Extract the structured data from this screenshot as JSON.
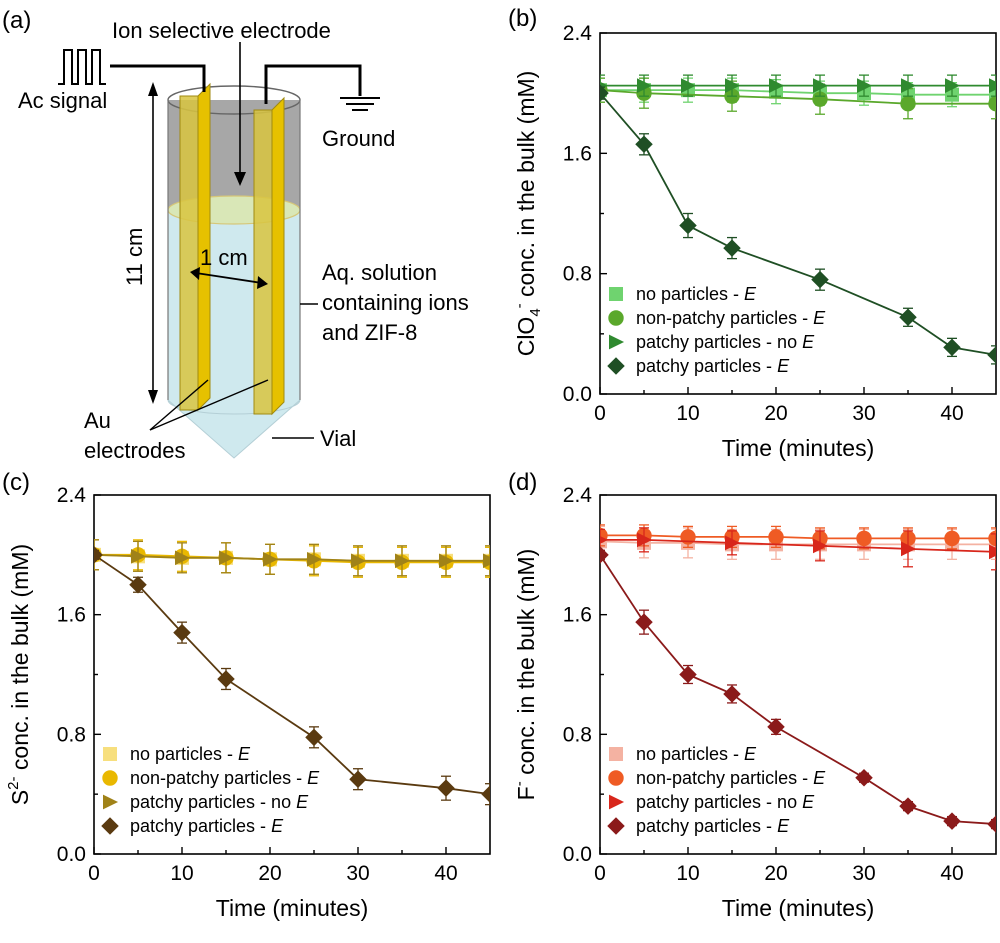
{
  "diagram": {
    "panel_label": "(a)",
    "labels": {
      "ion_electrode": "Ion selective electrode",
      "ac_signal": "Ac signal",
      "ground": "Ground",
      "height": "11 cm",
      "gap": "1 cm",
      "solution_line1": "Aq. solution",
      "solution_line2": "containing ions",
      "solution_line3": "and ZIF-8",
      "au_line1": "Au",
      "au_line2": "electrodes",
      "vial": "Vial"
    },
    "colors": {
      "liquid": "#cfe9ee",
      "gas": "#a7a7a7",
      "electrode": "#e6c100"
    }
  },
  "chart_data": [
    {
      "panel_label": "(b)",
      "type": "line",
      "xlabel": "Time (minutes)",
      "ylabel_main": "ClO",
      "ylabel_sub": "4",
      "ylabel_sup": "-",
      "ylabel_rest": " conc. in the bulk (mM)",
      "xlim": [
        0,
        45
      ],
      "ylim": [
        0,
        2.4
      ],
      "xticks": [
        0,
        10,
        20,
        30,
        40
      ],
      "yticks": [
        0.0,
        0.8,
        1.6,
        2.4
      ],
      "ytick_labels": [
        "0.0",
        "0.8",
        "1.6",
        "2.4"
      ],
      "legend_position": "bottom-left",
      "series": [
        {
          "name": "no particles - ",
          "name_italic": "E",
          "marker": "square",
          "color": "#6fd36f",
          "x": [
            0,
            5,
            10,
            15,
            20,
            25,
            30,
            35,
            40,
            45
          ],
          "y": [
            2.02,
            2.02,
            2.02,
            2.02,
            2.01,
            2.0,
            2.0,
            1.99,
            1.99,
            1.99
          ],
          "err": [
            0.08,
            0.08,
            0.08,
            0.08,
            0.08,
            0.08,
            0.08,
            0.08,
            0.08,
            0.08
          ]
        },
        {
          "name": "non-patchy particles - ",
          "name_italic": "E",
          "marker": "circle",
          "color": "#5aa82b",
          "x": [
            0,
            5,
            15,
            25,
            35,
            45
          ],
          "y": [
            2.02,
            2.0,
            1.98,
            1.96,
            1.93,
            1.93
          ],
          "err": [
            0.08,
            0.1,
            0.1,
            0.1,
            0.1,
            0.1
          ]
        },
        {
          "name": "patchy particles - no ",
          "name_italic": "E",
          "marker": "triangle",
          "color": "#2f8a2f",
          "x": [
            0,
            5,
            10,
            15,
            20,
            25,
            30,
            35,
            40,
            45
          ],
          "y": [
            2.05,
            2.05,
            2.05,
            2.05,
            2.05,
            2.05,
            2.05,
            2.05,
            2.05,
            2.05
          ],
          "err": [
            0.07,
            0.07,
            0.07,
            0.07,
            0.07,
            0.07,
            0.07,
            0.07,
            0.07,
            0.07
          ]
        },
        {
          "name": "patchy particles - ",
          "name_italic": "E",
          "marker": "diamond",
          "color": "#1f4f24",
          "x": [
            0,
            5,
            10,
            15,
            25,
            35,
            40,
            45
          ],
          "y": [
            2.0,
            1.66,
            1.12,
            0.97,
            0.76,
            0.51,
            0.31,
            0.26
          ],
          "err": [
            0.04,
            0.07,
            0.08,
            0.07,
            0.07,
            0.06,
            0.06,
            0.06
          ]
        }
      ]
    },
    {
      "panel_label": "(c)",
      "type": "line",
      "xlabel": "Time (minutes)",
      "ylabel_main": "S",
      "ylabel_sub": "",
      "ylabel_sup": "2-",
      "ylabel_rest": " conc. in the bulk (mM)",
      "xlim": [
        0,
        45
      ],
      "ylim": [
        0,
        2.4
      ],
      "xticks": [
        0,
        10,
        20,
        30,
        40
      ],
      "yticks": [
        0.0,
        0.8,
        1.6,
        2.4
      ],
      "ytick_labels": [
        "0.0",
        "0.8",
        "1.6",
        "2.4"
      ],
      "legend_position": "bottom-left",
      "series": [
        {
          "name": "no particles - ",
          "name_italic": "E",
          "marker": "square",
          "color": "#f7df7e",
          "x": [
            0,
            5,
            10,
            15,
            20,
            25,
            30,
            35,
            40,
            45
          ],
          "y": [
            2.0,
            1.99,
            1.98,
            1.98,
            1.97,
            1.97,
            1.96,
            1.96,
            1.96,
            1.96
          ],
          "err": [
            0.1,
            0.1,
            0.1,
            0.1,
            0.1,
            0.1,
            0.1,
            0.1,
            0.1,
            0.1
          ]
        },
        {
          "name": "non-patchy particles - ",
          "name_italic": "E",
          "marker": "circle",
          "color": "#e9b800",
          "x": [
            0,
            5,
            10,
            15,
            20,
            25,
            30,
            35,
            40,
            45
          ],
          "y": [
            2.0,
            2.0,
            1.99,
            1.98,
            1.97,
            1.96,
            1.95,
            1.95,
            1.95,
            1.95
          ],
          "err": [
            0.1,
            0.1,
            0.1,
            0.1,
            0.1,
            0.1,
            0.1,
            0.1,
            0.1,
            0.1
          ]
        },
        {
          "name": "patchy particles - no ",
          "name_italic": "E",
          "marker": "triangle",
          "color": "#a08218",
          "x": [
            0,
            5,
            10,
            15,
            20,
            25,
            30,
            35,
            40,
            45
          ],
          "y": [
            2.0,
            1.99,
            1.98,
            1.98,
            1.97,
            1.97,
            1.96,
            1.96,
            1.96,
            1.96
          ],
          "err": [
            0.1,
            0.1,
            0.1,
            0.1,
            0.1,
            0.1,
            0.1,
            0.1,
            0.1,
            0.1
          ]
        },
        {
          "name": "patchy particles - ",
          "name_italic": "E",
          "marker": "diamond",
          "color": "#5a3a10",
          "x": [
            0,
            5,
            10,
            15,
            25,
            30,
            40,
            45
          ],
          "y": [
            2.0,
            1.8,
            1.48,
            1.17,
            0.78,
            0.5,
            0.44,
            0.4
          ],
          "err": [
            0.03,
            0.05,
            0.07,
            0.07,
            0.07,
            0.07,
            0.08,
            0.07
          ]
        }
      ]
    },
    {
      "panel_label": "(d)",
      "type": "line",
      "xlabel": "Time (minutes)",
      "ylabel_main": "F",
      "ylabel_sub": "",
      "ylabel_sup": "-",
      "ylabel_rest": " conc. in the bulk (mM)",
      "xlim": [
        0,
        45
      ],
      "ylim": [
        0,
        2.4
      ],
      "xticks": [
        0,
        10,
        20,
        30,
        40
      ],
      "yticks": [
        0.0,
        0.8,
        1.6,
        2.4
      ],
      "ytick_labels": [
        "0.0",
        "0.8",
        "1.6",
        "2.4"
      ],
      "legend_position": "bottom-left",
      "series": [
        {
          "name": "no particles - ",
          "name_italic": "E",
          "marker": "square",
          "color": "#f4b2a2",
          "x": [
            0,
            5,
            10,
            15,
            20,
            25,
            30,
            35,
            40,
            45
          ],
          "y": [
            2.09,
            2.08,
            2.08,
            2.07,
            2.07,
            2.07,
            2.07,
            2.07,
            2.07,
            2.07
          ],
          "err": [
            0.1,
            0.1,
            0.1,
            0.1,
            0.1,
            0.1,
            0.1,
            0.1,
            0.1,
            0.1
          ]
        },
        {
          "name": "non-patchy particles - ",
          "name_italic": "E",
          "marker": "circle",
          "color": "#ef5b24",
          "x": [
            0,
            5,
            10,
            15,
            20,
            25,
            30,
            35,
            40,
            45
          ],
          "y": [
            2.13,
            2.13,
            2.12,
            2.12,
            2.12,
            2.11,
            2.11,
            2.11,
            2.11,
            2.11
          ],
          "err": [
            0.07,
            0.07,
            0.07,
            0.07,
            0.07,
            0.07,
            0.07,
            0.07,
            0.07,
            0.07
          ]
        },
        {
          "name": "patchy particles - no ",
          "name_italic": "E",
          "marker": "triangle",
          "color": "#d8261b",
          "x": [
            0,
            5,
            15,
            25,
            35,
            45
          ],
          "y": [
            2.1,
            2.1,
            2.08,
            2.06,
            2.04,
            2.02
          ],
          "err": [
            0.07,
            0.08,
            0.08,
            0.1,
            0.12,
            0.12
          ]
        },
        {
          "name": "patchy particles - ",
          "name_italic": "E",
          "marker": "diamond",
          "color": "#8b1a1a",
          "x": [
            0,
            5,
            10,
            15,
            20,
            30,
            35,
            40,
            45
          ],
          "y": [
            2.0,
            1.55,
            1.2,
            1.07,
            0.85,
            0.51,
            0.32,
            0.22,
            0.2
          ],
          "err": [
            0.03,
            0.08,
            0.06,
            0.06,
            0.05,
            0.03,
            0.03,
            0.03,
            0.03
          ]
        }
      ]
    }
  ]
}
